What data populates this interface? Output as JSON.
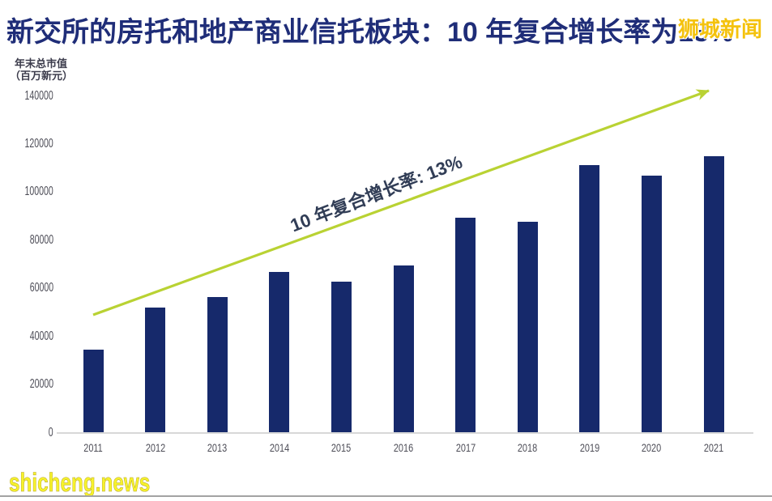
{
  "title": "新交所的房托和地产商业信托板块：10 年复合增长率为13%",
  "watermark_top": "狮城新闻",
  "watermark_bottom": "shicheng.news",
  "y_axis_title_line1": "年末总市值",
  "y_axis_title_line2": "（百万新元）",
  "annotation": "10 年复合增长率: 13%",
  "colors": {
    "bar": "#16296b",
    "title": "#1f2d78",
    "arrow": "#b9d233",
    "watermark": "#f4c20d",
    "annotation": "#313d56"
  },
  "chart_data": {
    "type": "bar",
    "categories": [
      "2011",
      "2012",
      "2013",
      "2014",
      "2015",
      "2016",
      "2017",
      "2018",
      "2019",
      "2020",
      "2021"
    ],
    "values": [
      34500,
      52000,
      56500,
      67000,
      63000,
      69500,
      89500,
      88000,
      111500,
      107000,
      115000
    ],
    "title": "新交所的房托和地产商业信托板块：10 年复合增长率为13%",
    "xlabel": "",
    "ylabel": "年末总市值（百万新元）",
    "ylim": [
      0,
      140000
    ],
    "yticks": [
      0,
      20000,
      40000,
      60000,
      80000,
      100000,
      120000,
      140000
    ],
    "annotation": "10 年复合增长率: 13%",
    "legend": false,
    "grid": false
  }
}
